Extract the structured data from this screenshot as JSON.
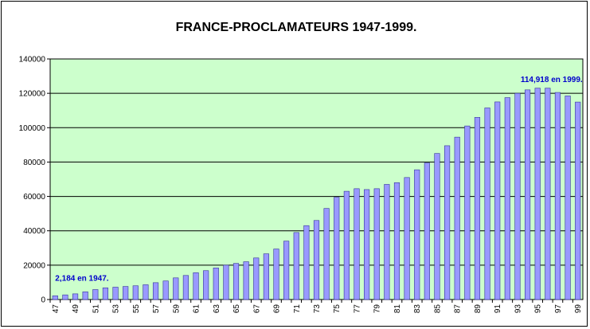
{
  "chart_data": {
    "type": "bar",
    "title": "FRANCE-PROCLAMATEURS 1947-1999.",
    "xlabel": "",
    "ylabel": "",
    "ylim": [
      0,
      140000
    ],
    "yticks": [
      "0",
      "20000",
      "40000",
      "60000",
      "80000",
      "100000",
      "120000",
      "140000"
    ],
    "grid": true,
    "legend": "none",
    "colors": {
      "plot_background": "#ccffcc",
      "bar_fill": "#9999ff",
      "bar_edge": "#333399",
      "annotation": "#0000cc"
    },
    "categories": [
      "47",
      "48",
      "49",
      "50",
      "51",
      "52",
      "53",
      "54",
      "55",
      "56",
      "57",
      "58",
      "59",
      "60",
      "61",
      "62",
      "63",
      "64",
      "65",
      "66",
      "67",
      "68",
      "69",
      "70",
      "71",
      "72",
      "73",
      "74",
      "75",
      "76",
      "77",
      "78",
      "79",
      "80",
      "81",
      "82",
      "83",
      "84",
      "85",
      "86",
      "87",
      "88",
      "89",
      "90",
      "91",
      "92",
      "93",
      "94",
      "95",
      "96",
      "97",
      "98",
      "99"
    ],
    "values": [
      2184,
      2700,
      3300,
      4500,
      5800,
      6800,
      7200,
      7600,
      8000,
      8600,
      9800,
      10800,
      12600,
      14000,
      15600,
      16800,
      18400,
      20000,
      21000,
      22000,
      24200,
      26600,
      29400,
      34000,
      39000,
      43000,
      46000,
      53000,
      59500,
      63000,
      64500,
      64000,
      64500,
      67000,
      68000,
      71000,
      75500,
      79500,
      85000,
      89500,
      94500,
      101000,
      106000,
      111500,
      115000,
      117500,
      120000,
      122000,
      123000,
      123000,
      120500,
      118500,
      114918
    ],
    "annotations": [
      {
        "text": "2,184 en 1947.",
        "category": "47"
      },
      {
        "text": "114,918 en 1999.",
        "category": "99"
      }
    ]
  }
}
